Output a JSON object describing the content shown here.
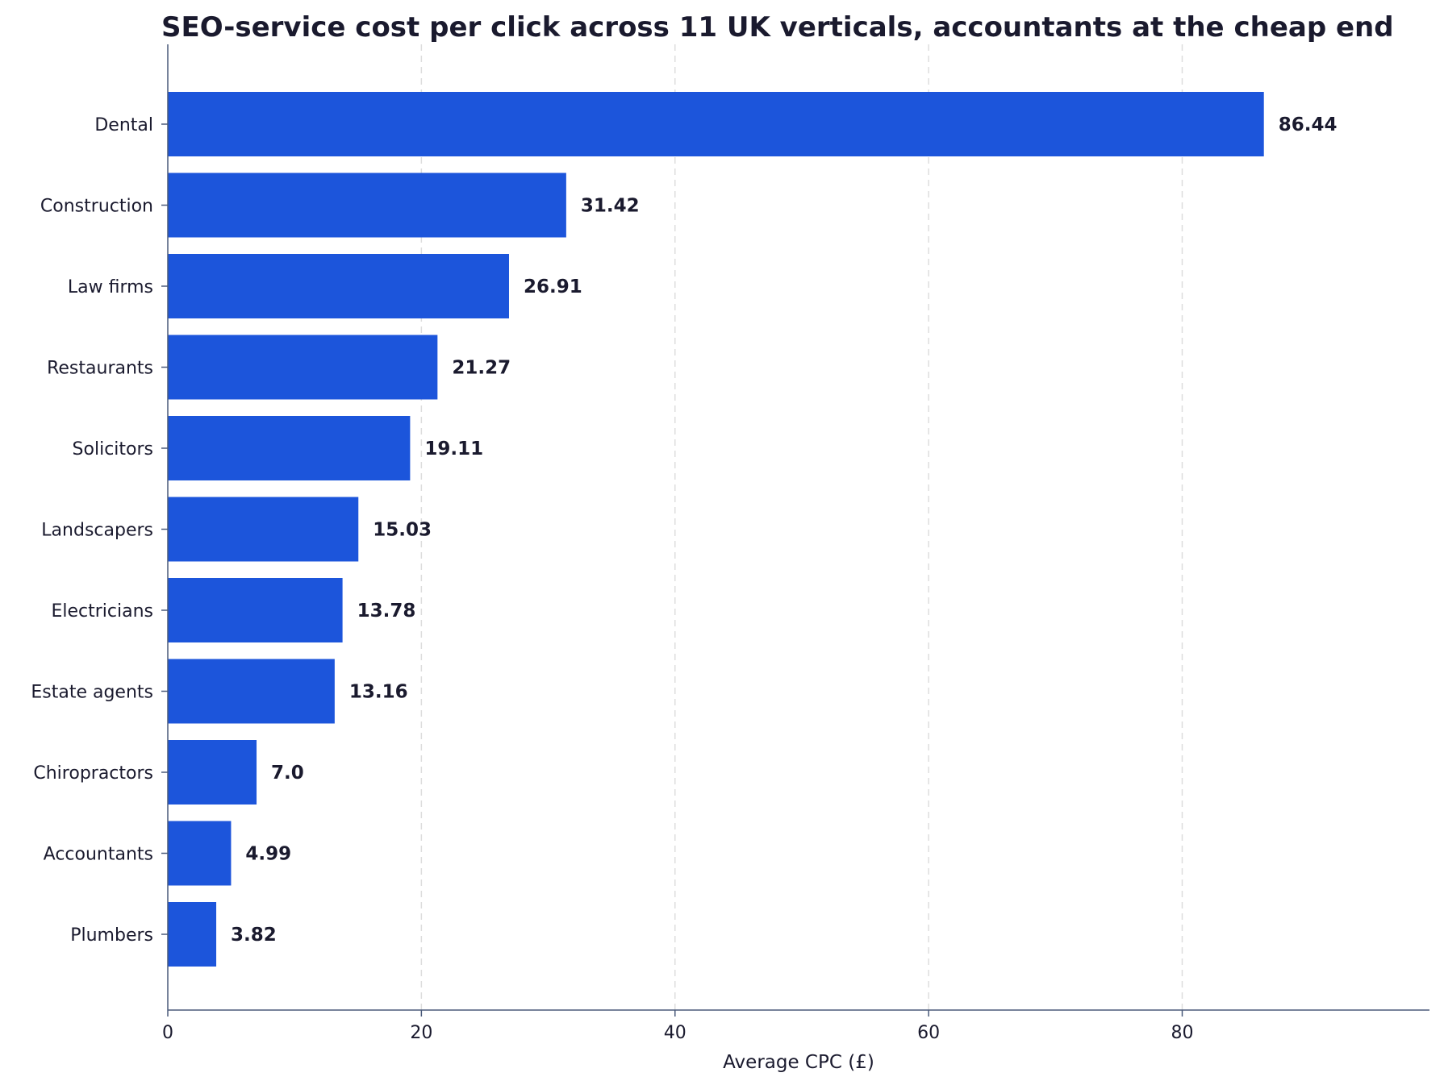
{
  "chart_data": {
    "type": "bar",
    "orientation": "horizontal",
    "title": "SEO-service cost per click across 11 UK verticals, accountants at the cheap end",
    "xlabel": "Average CPC (£)",
    "ylabel": "",
    "categories": [
      "Dental",
      "Construction",
      "Law firms",
      "Restaurants",
      "Solicitors",
      "Landscapers",
      "Electricians",
      "Estate agents",
      "Chiropractors",
      "Accountants",
      "Plumbers"
    ],
    "values": [
      86.44,
      31.42,
      26.91,
      21.27,
      19.11,
      15.03,
      13.78,
      13.16,
      7.0,
      4.99,
      3.82
    ],
    "value_labels": [
      "86.44",
      "31.42",
      "26.91",
      "21.27",
      "19.11",
      "15.03",
      "13.78",
      "13.16",
      "7.0",
      "4.99",
      "3.82"
    ],
    "xlim": [
      0,
      99.5
    ],
    "xticks": [
      0,
      20,
      40,
      60,
      80
    ],
    "xtick_labels": [
      "0",
      "20",
      "40",
      "60",
      "80"
    ],
    "grid": "vertical dashed",
    "colors": {
      "bar": "#1c55db",
      "text": "#1a1a2e",
      "axis": "#4a5a7a",
      "grid": "#dddddd"
    }
  }
}
